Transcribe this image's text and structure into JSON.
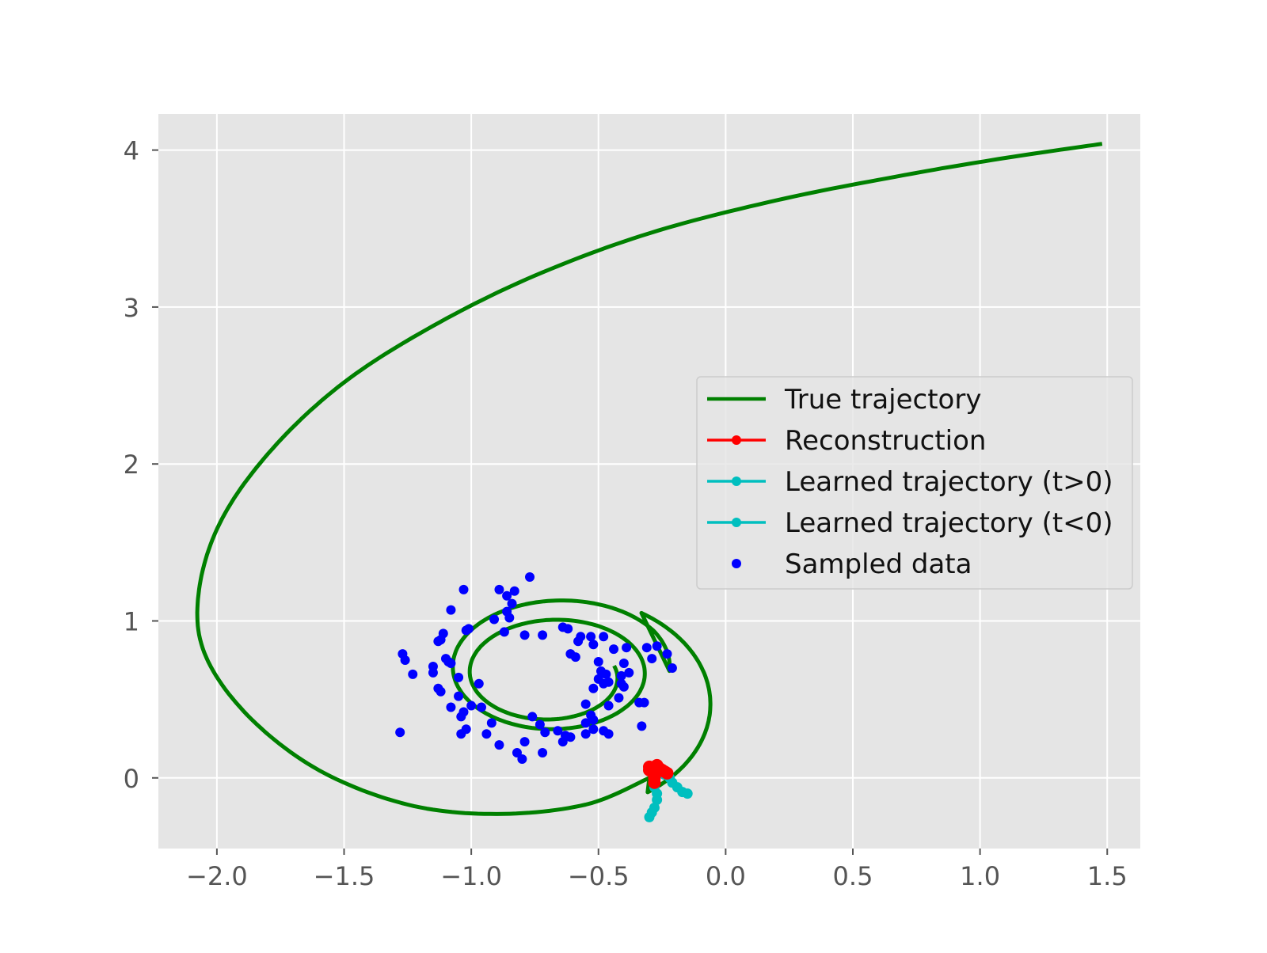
{
  "chart_data": {
    "type": "line",
    "title": "",
    "xlabel": "",
    "ylabel": "",
    "xlim": [
      -2.23,
      1.63
    ],
    "ylim": [
      -0.45,
      4.23
    ],
    "grid": true,
    "legend_position": "center-right",
    "x_ticks": [
      -2.0,
      -1.5,
      -1.0,
      -0.5,
      0.0,
      0.5,
      1.0,
      1.5
    ],
    "x_tick_labels": [
      "−2.0",
      "−1.5",
      "−1.0",
      "−0.5",
      "0.0",
      "0.5",
      "1.0",
      "1.5"
    ],
    "y_ticks": [
      0,
      1,
      2,
      3,
      4
    ],
    "y_tick_labels": [
      "0",
      "1",
      "2",
      "3",
      "4"
    ],
    "colors": {
      "background": "#e5e5e5",
      "grid": "#ffffff",
      "true_trajectory": "#008000",
      "reconstruction": "#ff0000",
      "learned": "#00bfbf",
      "sampled": "#0000ff",
      "tick_label": "#555555"
    },
    "true_trajectory": {
      "center": [
        -0.7,
        0.6
      ],
      "radius_start": 0.16,
      "radius_end": 0.39,
      "turns": 2.6,
      "y_scale_start": 0.9,
      "y_scale_end": 9.2,
      "start": [
        -0.28,
        0.25
      ],
      "end": [
        1.48,
        4.04
      ]
    },
    "reconstruction": [
      [
        -0.3,
        0.07
      ],
      [
        -0.28,
        0.07
      ],
      [
        -0.26,
        0.06
      ],
      [
        -0.25,
        0.05
      ],
      [
        -0.24,
        0.04
      ],
      [
        -0.23,
        0.03
      ],
      [
        -0.28,
        0.02
      ],
      [
        -0.28,
        0.0
      ],
      [
        -0.28,
        -0.03
      ],
      [
        -0.3,
        0.05
      ],
      [
        -0.29,
        0.04
      ],
      [
        -0.27,
        0.04
      ],
      [
        -0.27,
        0.08
      ]
    ],
    "learned_t_pos": [
      [
        -0.24,
        0.02
      ],
      [
        -0.22,
        0.0
      ],
      [
        -0.21,
        -0.03
      ],
      [
        -0.19,
        -0.06
      ],
      [
        -0.17,
        -0.09
      ],
      [
        -0.15,
        -0.1
      ]
    ],
    "learned_t_neg": [
      [
        -0.28,
        -0.02
      ],
      [
        -0.28,
        -0.06
      ],
      [
        -0.27,
        -0.1
      ],
      [
        -0.27,
        -0.14
      ],
      [
        -0.28,
        -0.19
      ],
      [
        -0.29,
        -0.22
      ],
      [
        -0.3,
        -0.25
      ]
    ],
    "sampled_data": [
      [
        -0.77,
        1.28
      ],
      [
        -1.03,
        1.2
      ],
      [
        -0.89,
        1.2
      ],
      [
        -0.83,
        1.19
      ],
      [
        -0.86,
        1.16
      ],
      [
        -0.84,
        1.11
      ],
      [
        -0.86,
        1.06
      ],
      [
        -1.08,
        1.07
      ],
      [
        -0.85,
        1.02
      ],
      [
        -0.91,
        1.01
      ],
      [
        -0.64,
        0.96
      ],
      [
        -0.62,
        0.95
      ],
      [
        -1.11,
        0.92
      ],
      [
        -1.02,
        0.94
      ],
      [
        -1.01,
        0.95
      ],
      [
        -0.87,
        0.93
      ],
      [
        -0.79,
        0.91
      ],
      [
        -0.72,
        0.91
      ],
      [
        -0.57,
        0.9
      ],
      [
        -0.53,
        0.9
      ],
      [
        -0.48,
        0.9
      ],
      [
        -0.58,
        0.87
      ],
      [
        -1.12,
        0.88
      ],
      [
        -1.13,
        0.87
      ],
      [
        -0.52,
        0.85
      ],
      [
        -0.44,
        0.82
      ],
      [
        -0.39,
        0.83
      ],
      [
        -0.31,
        0.83
      ],
      [
        -0.27,
        0.84
      ],
      [
        -0.23,
        0.79
      ],
      [
        -0.61,
        0.79
      ],
      [
        -0.59,
        0.77
      ],
      [
        -1.27,
        0.79
      ],
      [
        -1.26,
        0.75
      ],
      [
        -1.1,
        0.76
      ],
      [
        -1.09,
        0.74
      ],
      [
        -1.08,
        0.73
      ],
      [
        -0.5,
        0.74
      ],
      [
        -0.4,
        0.73
      ],
      [
        -0.29,
        0.76
      ],
      [
        -0.21,
        0.7
      ],
      [
        -1.15,
        0.71
      ],
      [
        -1.15,
        0.67
      ],
      [
        -1.23,
        0.66
      ],
      [
        -1.05,
        0.64
      ],
      [
        -0.49,
        0.68
      ],
      [
        -0.47,
        0.66
      ],
      [
        -0.41,
        0.65
      ],
      [
        -0.38,
        0.67
      ],
      [
        -0.97,
        0.6
      ],
      [
        -0.5,
        0.63
      ],
      [
        -0.46,
        0.61
      ],
      [
        -0.48,
        0.6
      ],
      [
        -0.41,
        0.6
      ],
      [
        -0.4,
        0.58
      ],
      [
        -0.52,
        0.57
      ],
      [
        -1.13,
        0.57
      ],
      [
        -1.12,
        0.55
      ],
      [
        -1.05,
        0.52
      ],
      [
        -0.42,
        0.51
      ],
      [
        -0.34,
        0.48
      ],
      [
        -0.32,
        0.48
      ],
      [
        -0.55,
        0.47
      ],
      [
        -0.46,
        0.46
      ],
      [
        -1.0,
        0.46
      ],
      [
        -1.08,
        0.45
      ],
      [
        -0.96,
        0.45
      ],
      [
        -1.03,
        0.42
      ],
      [
        -1.04,
        0.39
      ],
      [
        -0.53,
        0.4
      ],
      [
        -0.52,
        0.37
      ],
      [
        -0.55,
        0.35
      ],
      [
        -0.76,
        0.39
      ],
      [
        -0.92,
        0.35
      ],
      [
        -0.73,
        0.34
      ],
      [
        -0.33,
        0.33
      ],
      [
        -1.02,
        0.31
      ],
      [
        -1.04,
        0.28
      ],
      [
        -0.52,
        0.31
      ],
      [
        -0.48,
        0.3
      ],
      [
        -0.46,
        0.28
      ],
      [
        -0.55,
        0.28
      ],
      [
        -0.94,
        0.28
      ],
      [
        -0.71,
        0.29
      ],
      [
        -0.66,
        0.3
      ],
      [
        -0.63,
        0.27
      ],
      [
        -0.61,
        0.26
      ],
      [
        -0.64,
        0.23
      ],
      [
        -1.28,
        0.29
      ],
      [
        -0.79,
        0.23
      ],
      [
        -0.89,
        0.21
      ],
      [
        -0.82,
        0.16
      ],
      [
        -0.8,
        0.12
      ],
      [
        -0.72,
        0.16
      ]
    ],
    "series": [
      {
        "name": "True trajectory",
        "color": "#008000",
        "marker": "none"
      },
      {
        "name": "Reconstruction",
        "color": "#ff0000",
        "marker": "circle"
      },
      {
        "name": "Learned trajectory (t>0)",
        "color": "#00bfbf",
        "marker": "circle"
      },
      {
        "name": "Learned trajectory (t<0)",
        "color": "#00bfbf",
        "marker": "circle"
      },
      {
        "name": "Sampled data",
        "color": "#0000ff",
        "marker": "dot-only"
      }
    ]
  }
}
